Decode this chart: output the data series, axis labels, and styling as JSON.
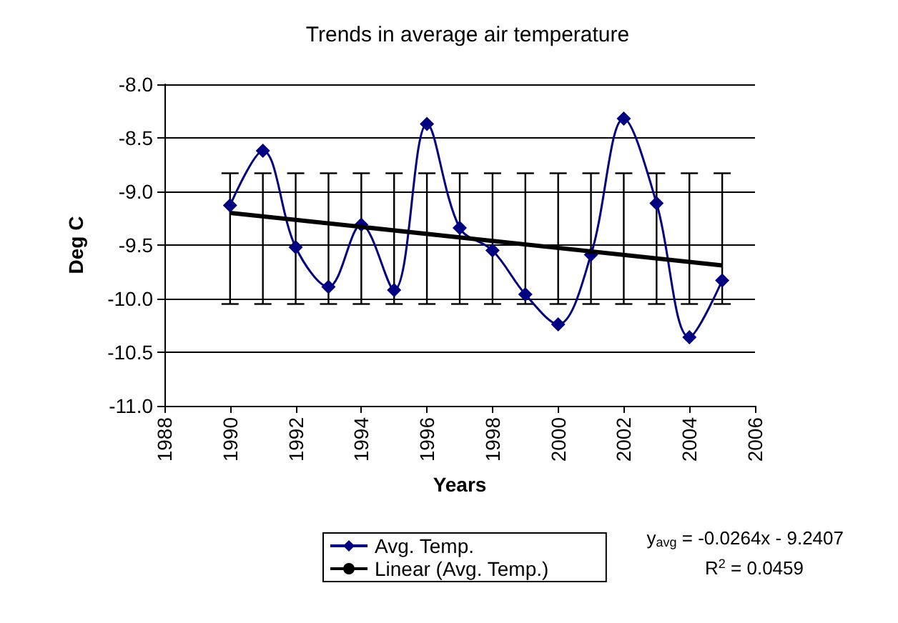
{
  "chart_data": {
    "type": "line",
    "title": "Trends in average air temperature",
    "xlabel": "Years",
    "ylabel": "Deg C",
    "x": [
      1990,
      1991,
      1992,
      1993,
      1994,
      1995,
      1996,
      1997,
      1998,
      1999,
      2000,
      2001,
      2002,
      2003,
      2004,
      2005
    ],
    "series": [
      {
        "name": "Avg. Temp.",
        "color": "#000080",
        "marker": "diamond",
        "values": [
          -9.13,
          -8.62,
          -9.52,
          -9.89,
          -9.31,
          -9.92,
          -8.37,
          -9.34,
          -9.55,
          -9.96,
          -10.24,
          -9.59,
          -8.32,
          -9.11,
          -10.36,
          -9.83
        ],
        "errors": [
          [
            -10.05,
            -8.83
          ],
          [
            -10.05,
            -8.83
          ],
          [
            -10.05,
            -8.83
          ],
          [
            -10.05,
            -8.83
          ],
          [
            -10.05,
            -8.83
          ],
          [
            -10.05,
            -8.83
          ],
          [
            -10.05,
            -8.83
          ],
          [
            -10.05,
            -8.83
          ],
          [
            -10.05,
            -8.83
          ],
          [
            -10.05,
            -8.83
          ],
          [
            -10.05,
            -8.83
          ],
          [
            -10.05,
            -8.83
          ],
          [
            -10.05,
            -8.83
          ],
          [
            -10.05,
            -8.83
          ],
          [
            -10.05,
            -8.83
          ],
          [
            -10.05,
            -8.83
          ]
        ]
      },
      {
        "name": "Linear (Avg. Temp.)",
        "color": "#000000",
        "marker": "none",
        "x": [
          1990,
          2005
        ],
        "values": [
          -9.2,
          -9.69
        ]
      }
    ],
    "xlim": [
      1988,
      2006
    ],
    "xticks": [
      1988,
      1990,
      1992,
      1994,
      1996,
      1998,
      2000,
      2002,
      2004,
      2006
    ],
    "ylim": [
      -11,
      -8
    ],
    "yticks": [
      {
        "value": -11,
        "label": "-11.0"
      },
      {
        "value": -10.5,
        "label": "-10.5"
      },
      {
        "value": -10,
        "label": "-10.0"
      },
      {
        "value": -9.5,
        "label": "-9.5"
      },
      {
        "value": -9,
        "label": "-9.0"
      },
      {
        "value": -8.5,
        "label": "-8.5"
      },
      {
        "value": -8,
        "label": "-8.0"
      }
    ],
    "grid": "y",
    "legend": "bottom",
    "annotations": [
      "y$_{avg}$ = -0.0264x - 9.2407",
      "R$^{2}$ = 0.0459"
    ]
  }
}
